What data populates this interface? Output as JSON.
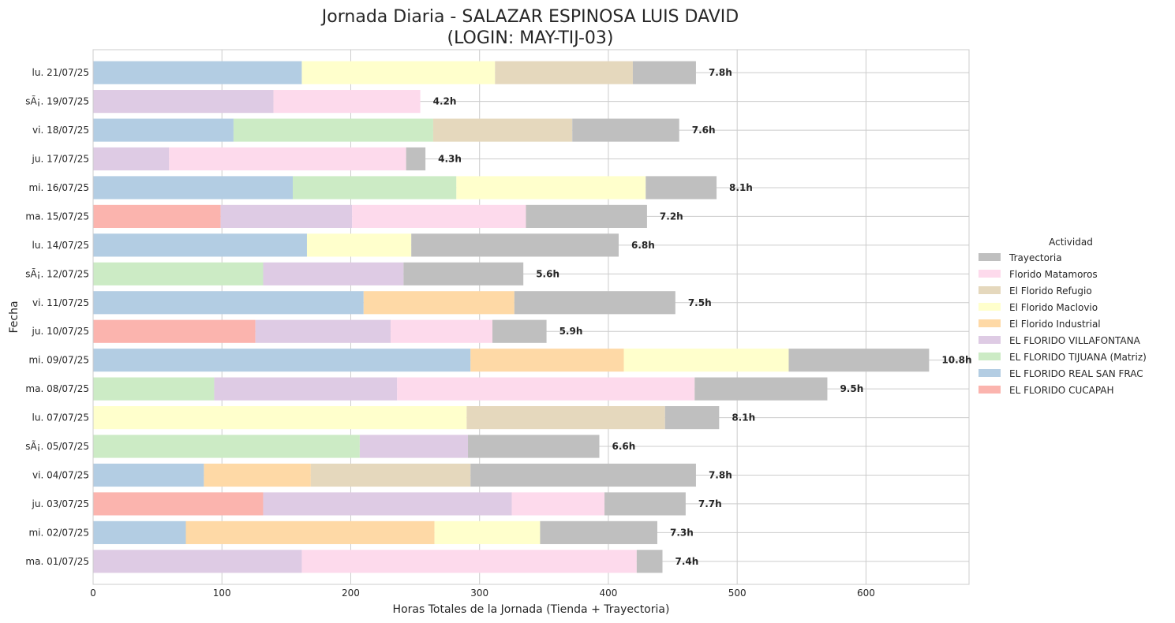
{
  "chart_data": {
    "type": "bar",
    "orientation": "horizontal",
    "stacked": true,
    "title_line1": "Jornada Diaria - SALAZAR ESPINOSA LUIS DAVID",
    "title_line2": "(LOGIN: MAY-TIJ-03)",
    "xlabel": "Horas Totales de la Jornada (Tienda + Trayectoria)",
    "ylabel": "Fecha",
    "xlim": [
      0,
      680
    ],
    "xticks": [
      0,
      100,
      200,
      300,
      400,
      500,
      600
    ],
    "grid": true,
    "legend_title": "Actividad",
    "legend_position": "right",
    "stack_order": [
      "EL FLORIDO CUCAPAH",
      "EL FLORIDO REAL SAN FRAC",
      "EL FLORIDO TIJUANA (Matriz)",
      "EL FLORIDO VILLAFONTANA",
      "El Florido Industrial",
      "El Florido Maclovio",
      "El Florido Refugio",
      "Florido Matamoros",
      "Trayectoria"
    ],
    "legend_order": [
      "Trayectoria",
      "Florido Matamoros",
      "El Florido Refugio",
      "El Florido Maclovio",
      "El Florido Industrial",
      "EL FLORIDO VILLAFONTANA",
      "EL FLORIDO TIJUANA (Matriz)",
      "EL FLORIDO REAL SAN FRAC",
      "EL FLORIDO CUCAPAH"
    ],
    "colors": {
      "Trayectoria": "#bfbfbf",
      "Florido Matamoros": "#fddaec",
      "El Florido Refugio": "#e5d8bd",
      "El Florido Maclovio": "#ffffcc",
      "El Florido Industrial": "#fed9a6",
      "EL FLORIDO VILLAFONTANA": "#decbe4",
      "EL FLORIDO TIJUANA (Matriz)": "#ccebc5",
      "EL FLORIDO REAL SAN FRAC": "#b3cde3",
      "EL FLORIDO CUCAPAH": "#fbb4ae"
    },
    "rows": [
      {
        "label": "lu. 21/07/25",
        "total_label": "7.8h",
        "segments": {
          "EL FLORIDO REAL SAN FRAC": 162,
          "El Florido Maclovio": 150,
          "El Florido Refugio": 107,
          "Trayectoria": 49
        }
      },
      {
        "label": "sÃ¡. 19/07/25",
        "total_label": "4.2h",
        "segments": {
          "EL FLORIDO VILLAFONTANA": 140,
          "Florido Matamoros": 114
        }
      },
      {
        "label": "vi. 18/07/25",
        "total_label": "7.6h",
        "segments": {
          "EL FLORIDO REAL SAN FRAC": 109,
          "EL FLORIDO TIJUANA (Matriz)": 155,
          "El Florido Refugio": 108,
          "Trayectoria": 83
        }
      },
      {
        "label": "ju. 17/07/25",
        "total_label": "4.3h",
        "segments": {
          "EL FLORIDO VILLAFONTANA": 59,
          "Florido Matamoros": 184,
          "Trayectoria": 15
        }
      },
      {
        "label": "mi. 16/07/25",
        "total_label": "8.1h",
        "segments": {
          "EL FLORIDO REAL SAN FRAC": 155,
          "EL FLORIDO TIJUANA (Matriz)": 127,
          "El Florido Maclovio": 147,
          "Trayectoria": 55
        }
      },
      {
        "label": "ma. 15/07/25",
        "total_label": "7.2h",
        "segments": {
          "EL FLORIDO CUCAPAH": 99,
          "EL FLORIDO VILLAFONTANA": 102,
          "Florido Matamoros": 135,
          "Trayectoria": 94
        }
      },
      {
        "label": "lu. 14/07/25",
        "total_label": "6.8h",
        "segments": {
          "EL FLORIDO REAL SAN FRAC": 166,
          "El Florido Maclovio": 81,
          "Trayectoria": 161
        }
      },
      {
        "label": "sÃ¡. 12/07/25",
        "total_label": "5.6h",
        "segments": {
          "EL FLORIDO TIJUANA (Matriz)": 132,
          "EL FLORIDO VILLAFONTANA": 109,
          "Trayectoria": 93
        }
      },
      {
        "label": "vi. 11/07/25",
        "total_label": "7.5h",
        "segments": {
          "EL FLORIDO REAL SAN FRAC": 210,
          "El Florido Industrial": 117,
          "Trayectoria": 125
        }
      },
      {
        "label": "ju. 10/07/25",
        "total_label": "5.9h",
        "segments": {
          "EL FLORIDO CUCAPAH": 126,
          "EL FLORIDO VILLAFONTANA": 105,
          "Florido Matamoros": 79,
          "Trayectoria": 42
        }
      },
      {
        "label": "mi. 09/07/25",
        "total_label": "10.8h",
        "segments": {
          "EL FLORIDO REAL SAN FRAC": 293,
          "El Florido Industrial": 119,
          "El Florido Maclovio": 128,
          "Trayectoria": 109
        }
      },
      {
        "label": "ma. 08/07/25",
        "total_label": "9.5h",
        "segments": {
          "EL FLORIDO TIJUANA (Matriz)": 94,
          "EL FLORIDO VILLAFONTANA": 142,
          "Florido Matamoros": 231,
          "Trayectoria": 103
        }
      },
      {
        "label": "lu. 07/07/25",
        "total_label": "8.1h",
        "segments": {
          "El Florido Maclovio": 290,
          "El Florido Refugio": 154,
          "Trayectoria": 42
        }
      },
      {
        "label": "sÃ¡. 05/07/25",
        "total_label": "6.6h",
        "segments": {
          "EL FLORIDO TIJUANA (Matriz)": 207,
          "EL FLORIDO VILLAFONTANA": 84,
          "Trayectoria": 102
        }
      },
      {
        "label": "vi. 04/07/25",
        "total_label": "7.8h",
        "segments": {
          "EL FLORIDO REAL SAN FRAC": 86,
          "El Florido Industrial": 83,
          "El Florido Refugio": 124,
          "Trayectoria": 175
        }
      },
      {
        "label": "ju. 03/07/25",
        "total_label": "7.7h",
        "segments": {
          "EL FLORIDO CUCAPAH": 132,
          "EL FLORIDO VILLAFONTANA": 193,
          "Florido Matamoros": 72,
          "Trayectoria": 63
        }
      },
      {
        "label": "mi. 02/07/25",
        "total_label": "7.3h",
        "segments": {
          "EL FLORIDO REAL SAN FRAC": 72,
          "El Florido Industrial": 193,
          "El Florido Maclovio": 82,
          "Trayectoria": 91
        }
      },
      {
        "label": "ma. 01/07/25",
        "total_label": "7.4h",
        "segments": {
          "EL FLORIDO VILLAFONTANA": 162,
          "Florido Matamoros": 260,
          "Trayectoria": 20
        }
      }
    ]
  }
}
